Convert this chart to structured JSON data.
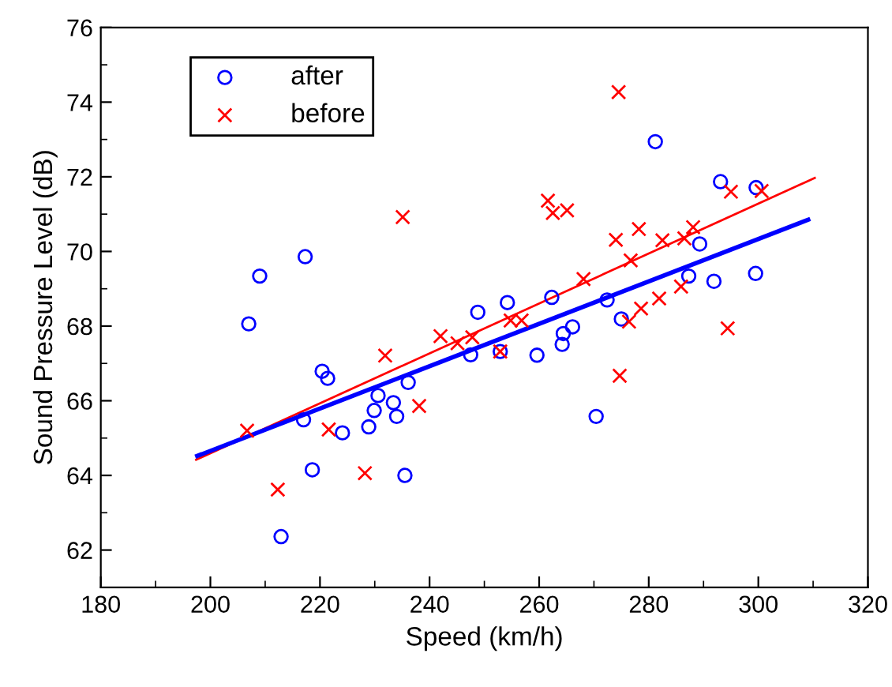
{
  "chart_data": {
    "type": "scatter",
    "xlabel": "Speed (km/h)",
    "ylabel": "Sound Pressure Level (dB)",
    "xlim": [
      180,
      320
    ],
    "xticks": [
      180,
      200,
      220,
      240,
      260,
      280,
      300,
      320
    ],
    "ylim": [
      61,
      76
    ],
    "yticks": [
      62,
      64,
      66,
      68,
      70,
      72,
      74,
      76
    ],
    "grid": false,
    "legend": "top left",
    "series": [
      {
        "name": "after",
        "color": "#0000ff",
        "marker": "circle",
        "x": [
          209.0,
          217.3,
          207.0,
          220.4,
          221.4,
          217.0,
          224.1,
          218.6,
          212.9,
          230.6,
          229.9,
          228.9,
          233.4,
          234.0,
          236.1,
          235.5,
          247.5,
          248.8,
          254.2,
          252.9,
          262.3,
          259.6,
          264.4,
          264.2,
          266.1,
          272.4,
          275.0,
          270.4,
          287.3,
          291.9,
          299.5,
          289.3,
          293.1,
          299.6,
          281.2
        ],
        "values": [
          69.34,
          69.86,
          68.06,
          66.79,
          66.6,
          65.49,
          65.14,
          64.15,
          62.36,
          66.14,
          65.74,
          65.3,
          65.95,
          65.58,
          66.49,
          64.0,
          67.23,
          68.37,
          68.63,
          67.32,
          68.77,
          67.22,
          67.8,
          67.51,
          67.98,
          68.7,
          68.19,
          65.58,
          69.34,
          69.2,
          69.41,
          70.2,
          71.87,
          71.71,
          72.94
        ]
      },
      {
        "name": "before",
        "color": "#ff0000",
        "marker": "cross",
        "x": [
          206.7,
          212.3,
          221.6,
          228.2,
          231.9,
          238.1,
          242.0,
          245.1,
          247.8,
          235.1,
          252.9,
          254.8,
          256.8,
          268.1,
          276.4,
          278.6,
          281.9,
          285.9,
          274.7,
          294.4,
          274.5,
          261.6,
          262.5,
          265.1,
          274.0,
          278.2,
          282.5,
          286.5,
          288.1,
          276.7,
          295.0,
          300.6
        ],
        "values": [
          65.2,
          63.62,
          65.23,
          64.06,
          67.21,
          65.86,
          67.73,
          67.54,
          67.7,
          70.92,
          67.32,
          68.15,
          68.15,
          69.26,
          68.12,
          68.47,
          68.74,
          69.06,
          66.67,
          67.94,
          74.27,
          71.36,
          71.03,
          71.1,
          70.31,
          70.6,
          70.3,
          70.35,
          70.65,
          69.76,
          71.6,
          71.62
        ]
      },
      {
        "type": "line",
        "color": "#ff0000",
        "x": [
          197.4,
          310.3
        ],
        "values": [
          64.42,
          71.97
        ]
      },
      {
        "type": "line",
        "color": "#0000ff",
        "x": [
          197.6,
          309.1
        ],
        "values": [
          64.52,
          70.85
        ]
      }
    ]
  }
}
